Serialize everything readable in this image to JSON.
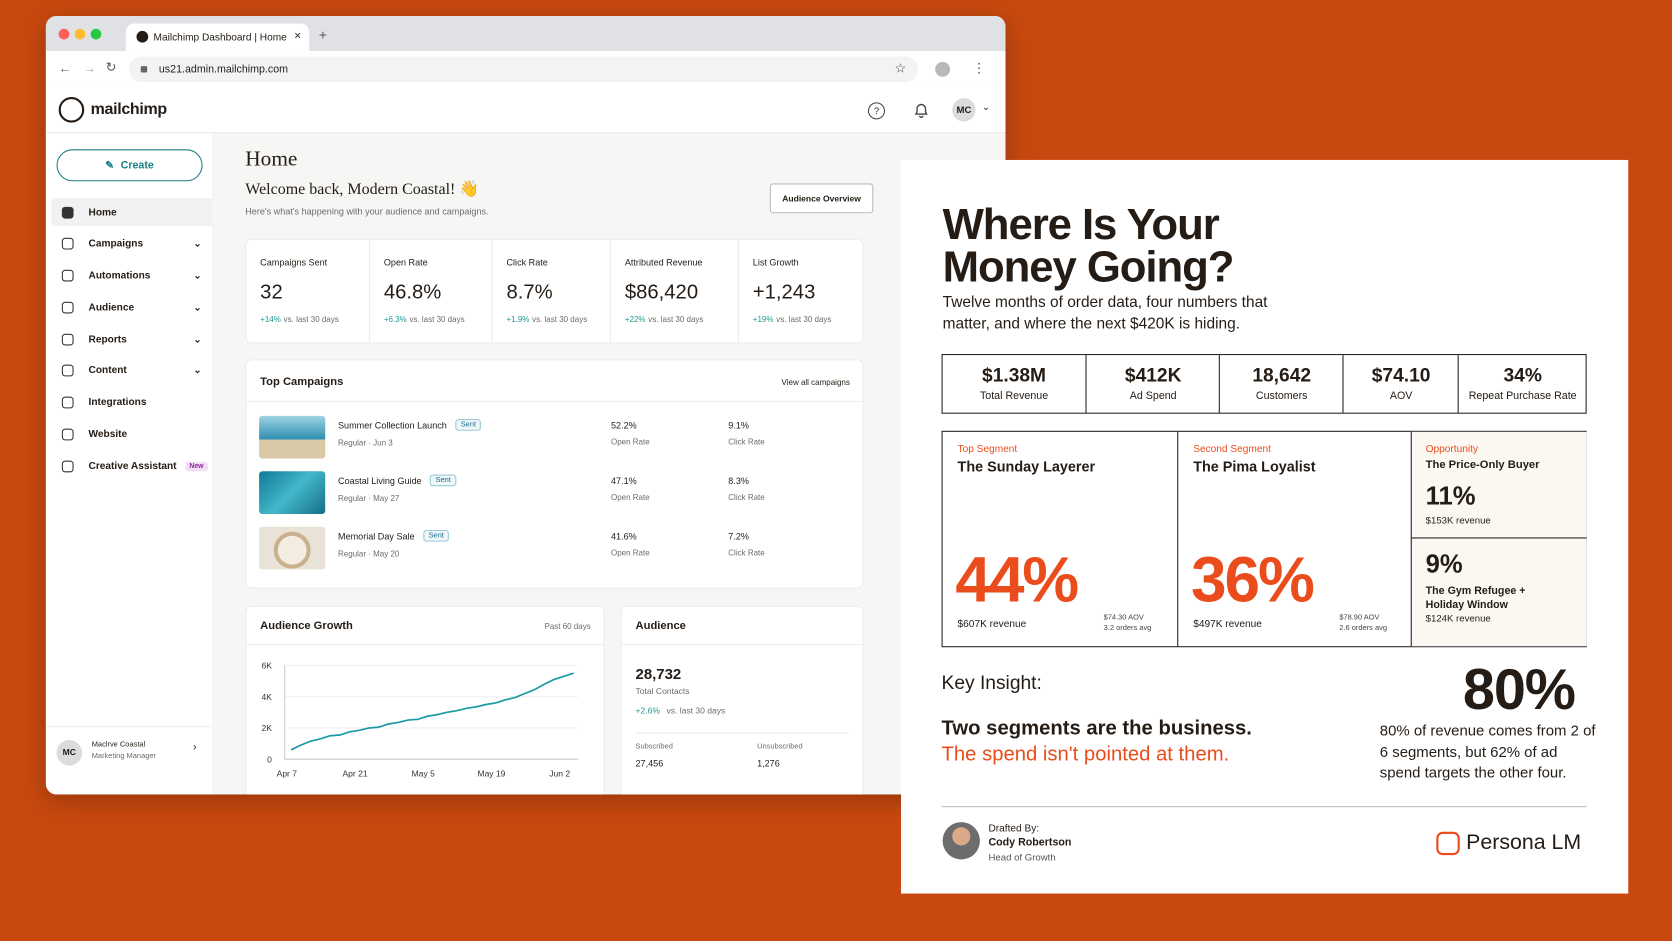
{
  "browser": {
    "tab_title": "Mailchimp Dashboard | Home",
    "url": "us21.admin.mailchimp.com"
  },
  "app": {
    "logo": "mailchimp",
    "avatar": "MC",
    "create": "Create",
    "nav": [
      {
        "label": "Home"
      },
      {
        "label": "Campaigns"
      },
      {
        "label": "Automations"
      },
      {
        "label": "Audience"
      },
      {
        "label": "Reports"
      },
      {
        "label": "Content"
      },
      {
        "label": "Integrations"
      },
      {
        "label": "Website"
      },
      {
        "label": "Creative Assistant",
        "badge": "New"
      }
    ],
    "user": {
      "initials": "MC",
      "name": "Maclrve Coastal",
      "role": "Marketing Manager"
    }
  },
  "home": {
    "title": "Home",
    "welcome": "Welcome back, Modern Coastal! 👋",
    "subtitle": "Here's what's happening with your audience and campaigns.",
    "button": "Audience Overview",
    "stats": [
      {
        "label": "Campaigns Sent",
        "value": "32",
        "change": "+14%",
        "note": "vs. last 30 days"
      },
      {
        "label": "Open Rate",
        "value": "46.8%",
        "change": "+6.3%",
        "note": "vs. last 30 days"
      },
      {
        "label": "Click Rate",
        "value": "8.7%",
        "change": "+1.9%",
        "note": "vs. last 30 days"
      },
      {
        "label": "Attributed Revenue",
        "value": "$86,420",
        "change": "+22%",
        "note": "vs. last 30 days"
      },
      {
        "label": "List Growth",
        "value": "+1,243",
        "change": "+19%",
        "note": "vs. last 30 days"
      }
    ],
    "top_campaigns": {
      "title": "Top Campaigns",
      "link": "View all campaigns",
      "rows": [
        {
          "name": "Summer Collection Launch",
          "status": "Sent",
          "meta": "Regular · Jun 3",
          "open": "52.2%",
          "open_label": "Open Rate",
          "click": "9.1%",
          "click_label": "Click Rate"
        },
        {
          "name": "Coastal Living Guide",
          "status": "Sent",
          "meta": "Regular · May 27",
          "open": "47.1%",
          "open_label": "Open Rate",
          "click": "8.3%",
          "click_label": "Click Rate"
        },
        {
          "name": "Memorial Day Sale",
          "status": "Sent",
          "meta": "Regular · May 20",
          "open": "41.6%",
          "open_label": "Open Rate",
          "click": "7.2%",
          "click_label": "Click Rate"
        }
      ]
    },
    "audience_growth": {
      "title": "Audience Growth",
      "period": "Past 60 days",
      "chart_data": {
        "type": "line",
        "color": "#1a9ba6",
        "categories": [
          "Apr 7",
          null,
          null,
          null,
          null,
          null,
          null,
          "Apr 21",
          null,
          null,
          null,
          null,
          null,
          null,
          "May 5",
          null,
          null,
          null,
          null,
          null,
          null,
          "May 19",
          null,
          null,
          null,
          null,
          null,
          null,
          "Jun 2",
          null
        ],
        "values": [
          600,
          900,
          1150,
          1300,
          1500,
          1550,
          1750,
          1850,
          2000,
          2050,
          2250,
          2350,
          2500,
          2550,
          2750,
          2850,
          3000,
          3100,
          3250,
          3350,
          3500,
          3600,
          3800,
          3950,
          4200,
          4450,
          4800,
          5100,
          5300,
          5500
        ],
        "ylim": [
          0,
          6000
        ],
        "yticks": [
          0,
          {
            "value": 2000,
            "label": "2K"
          },
          {
            "value": 4000,
            "label": "4K"
          },
          {
            "value": 6000,
            "label": "6K"
          }
        ]
      }
    },
    "audience": {
      "title": "Audience",
      "total": "28,732",
      "total_label": "Total Contacts",
      "change": "+2.6%",
      "change_note": "vs. last 30 days",
      "subscribed_label": "Subscribed",
      "subscribed": "27,456",
      "unsubscribed_label": "Unsubscribed",
      "unsubscribed": "1,276"
    }
  },
  "report": {
    "title": "Where Is Your Money Going?",
    "subtitle": "Twelve months of order data, four numbers that matter, and where the next $420K is hiding.",
    "kpis": [
      {
        "value": "$1.38M",
        "label": "Total Revenue"
      },
      {
        "value": "$412K",
        "label": "Ad Spend"
      },
      {
        "value": "18,642",
        "label": "Customers"
      },
      {
        "value": "$74.10",
        "label": "AOV"
      },
      {
        "value": "34%",
        "label": "Repeat Purchase Rate"
      }
    ],
    "segments": [
      {
        "tag": "Top Segment",
        "name": "The Sunday Layerer",
        "pct": "44%",
        "revenue": "$607K revenue",
        "aov": "$74.30 AOV",
        "orders": "3.2 orders avg"
      },
      {
        "tag": "Second Segment",
        "name": "The Pima Loyalist",
        "pct": "36%",
        "revenue": "$497K revenue",
        "aov": "$78.90 AOV",
        "orders": "2.6 orders avg"
      }
    ],
    "opportunity": {
      "tag": "Opportunity",
      "name": "The Price-Only Buyer",
      "pct": "11%",
      "revenue": "$153K revenue"
    },
    "other": {
      "pct": "9%",
      "name": "The Gym Refugee + Holiday Window",
      "revenue": "$124K revenue"
    },
    "insight": {
      "label": "Key Insight:",
      "headline": "Two segments are the business.",
      "sub": "The spend isn't pointed at them.",
      "stat": "80%",
      "stat_text": "80% of revenue comes from 2 of 6 segments, but 62% of ad spend targets the other four."
    },
    "footer": {
      "drafted": "Drafted By:",
      "name": "Cody Robertson",
      "role": "Head of Growth",
      "brand": "Persona LM"
    }
  }
}
